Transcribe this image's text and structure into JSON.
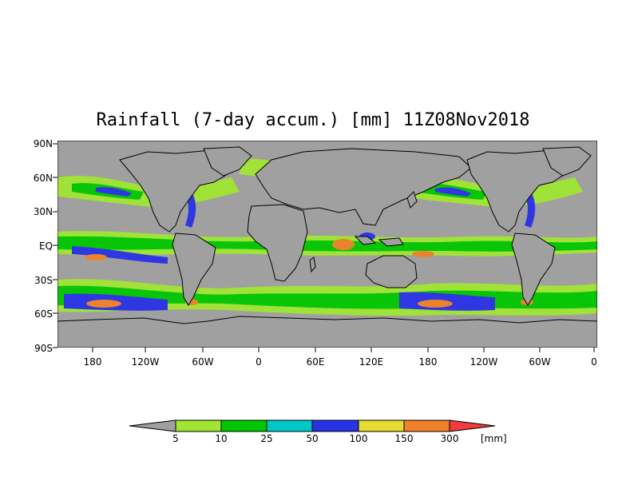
{
  "title": "Rainfall (7-day accum.) [mm] 11Z08Nov2018",
  "y_ticks": [
    "90N",
    "60N",
    "30N",
    "EQ",
    "30S",
    "60S",
    "90S"
  ],
  "x_ticks": [
    "180",
    "120W",
    "60W",
    "0",
    "60E",
    "120E",
    "180",
    "120W",
    "60W",
    "0"
  ],
  "colorbar": {
    "labels": [
      "5",
      "10",
      "25",
      "50",
      "100",
      "150",
      "300"
    ],
    "units": "[mm]",
    "colors": [
      "#a0a0a0",
      "#a0e632",
      "#00c800",
      "#00c8c8",
      "#2832e6",
      "#e6dc32",
      "#f08228",
      "#f03c3c"
    ]
  },
  "map": {
    "ocean_color": "#a0a0a0",
    "land_color": "#ffffff",
    "coastline_color": "#000000"
  }
}
